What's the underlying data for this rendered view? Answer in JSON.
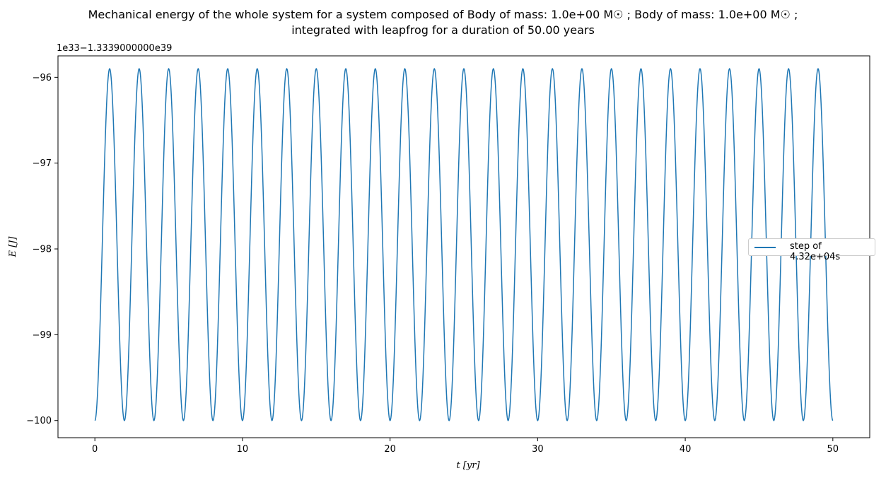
{
  "title_line1": "Mechanical energy of the whole system for a system composed of Body of mass: 1.0e+00 M☉ ; Body of mass: 1.0e+00 M☉ ;",
  "title_line2": "integrated with leapfrog for a duration of 50.00 years",
  "offset_text": "1e33−1.3339000000e39",
  "legend_label": "step of 4.32e+04s",
  "colors": {
    "series": "#1f77b4"
  },
  "chart_data": {
    "type": "line",
    "title": "Mechanical energy of the whole system for a system composed of Body of mass: 1.0e+00 M☉ ; Body of mass: 1.0e+00 M☉ ; integrated with leapfrog for a duration of 50.00 years",
    "xlabel": "t [yr]",
    "ylabel": "E [J]",
    "xlim": [
      -2.5,
      52.5
    ],
    "ylim": [
      -100.2,
      -95.75
    ],
    "xticks": [
      0,
      10,
      20,
      30,
      40,
      50
    ],
    "yticks": [
      -100,
      -99,
      -98,
      -97,
      -96
    ],
    "ytick_labels": [
      "−100",
      "−99",
      "−98",
      "−97",
      "−96"
    ],
    "grid": false,
    "legend_position": "center-right",
    "series": [
      {
        "name": "step of 4.32e+04s",
        "description": "oscillation between -100 and -95.9, period 2 yr, starting at minimum at t=0, ending near -99.95 at t=50",
        "x_range": [
          0,
          50
        ],
        "min": -100.0,
        "max": -95.9,
        "period": 2.0
      }
    ]
  }
}
